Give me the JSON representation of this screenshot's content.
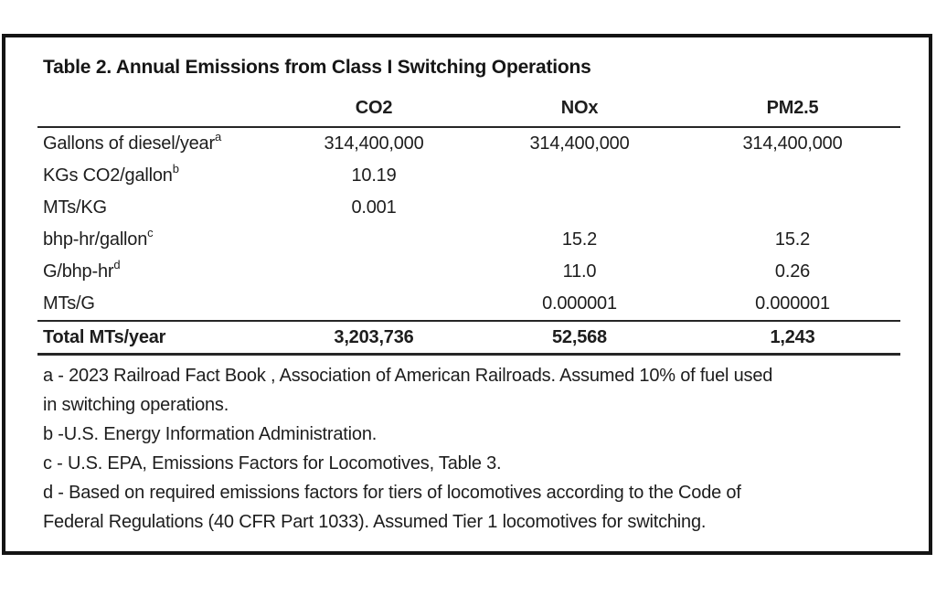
{
  "table": {
    "title": "Table 2. Annual Emissions from Class I Switching Operations",
    "columns": [
      "",
      "CO2",
      "NOx",
      "PM2.5"
    ],
    "rows": [
      {
        "label": "Gallons of diesel/year",
        "sup": "a",
        "co2": "314,400,000",
        "nox": "314,400,000",
        "pm25": "314,400,000"
      },
      {
        "label": "KGs CO2/gallon",
        "sup": "b",
        "co2": "10.19",
        "nox": "",
        "pm25": ""
      },
      {
        "label": "MTs/KG",
        "sup": "",
        "co2": "0.001",
        "nox": "",
        "pm25": ""
      },
      {
        "label": "bhp-hr/gallon",
        "sup": "c",
        "co2": "",
        "nox": "15.2",
        "pm25": "15.2"
      },
      {
        "label": "G/bhp-hr",
        "sup": "d",
        "co2": "",
        "nox": "11.0",
        "pm25": "0.26"
      },
      {
        "label": "MTs/G",
        "sup": "",
        "co2": "",
        "nox": "0.000001",
        "pm25": "0.000001"
      }
    ],
    "total_row": {
      "label": "Total MTs/year",
      "co2": "3,203,736",
      "nox": "52,568",
      "pm25": "1,243"
    },
    "footnotes": [
      {
        "lines": [
          "a - 2023 Railroad Fact Book , Association of American Railroads. Assumed 10% of fuel used",
          "in switching operations."
        ]
      },
      {
        "lines": [
          "b -U.S. Energy Information Administration."
        ]
      },
      {
        "lines": [
          "c - U.S. EPA, Emissions Factors for Locomotives, Table 3."
        ]
      },
      {
        "lines": [
          "d - Based on required emissions factors for tiers of locomotives according to the Code of",
          "Federal Regulations (40 CFR Part 1033). Assumed Tier 1 locomotives for switching."
        ]
      }
    ]
  },
  "colors": {
    "frame_border": "#141414",
    "rule": "#262626",
    "text": "#1d1d1d",
    "background": "#ffffff"
  },
  "chart_data": {
    "type": "table",
    "title": "Table 2. Annual Emissions from Class I Switching Operations",
    "columns": [
      "",
      "CO2",
      "NOx",
      "PM2.5"
    ],
    "rows": [
      [
        "Gallons of diesel/year (a)",
        "314,400,000",
        "314,400,000",
        "314,400,000"
      ],
      [
        "KGs CO2/gallon (b)",
        "10.19",
        "",
        ""
      ],
      [
        "MTs/KG",
        "0.001",
        "",
        ""
      ],
      [
        "bhp-hr/gallon (c)",
        "",
        "15.2",
        "15.2"
      ],
      [
        "G/bhp-hr (d)",
        "",
        "11.0",
        "0.26"
      ],
      [
        "MTs/G",
        "",
        "0.000001",
        "0.000001"
      ],
      [
        "Total MTs/year",
        "3,203,736",
        "52,568",
        "1,243"
      ]
    ]
  }
}
